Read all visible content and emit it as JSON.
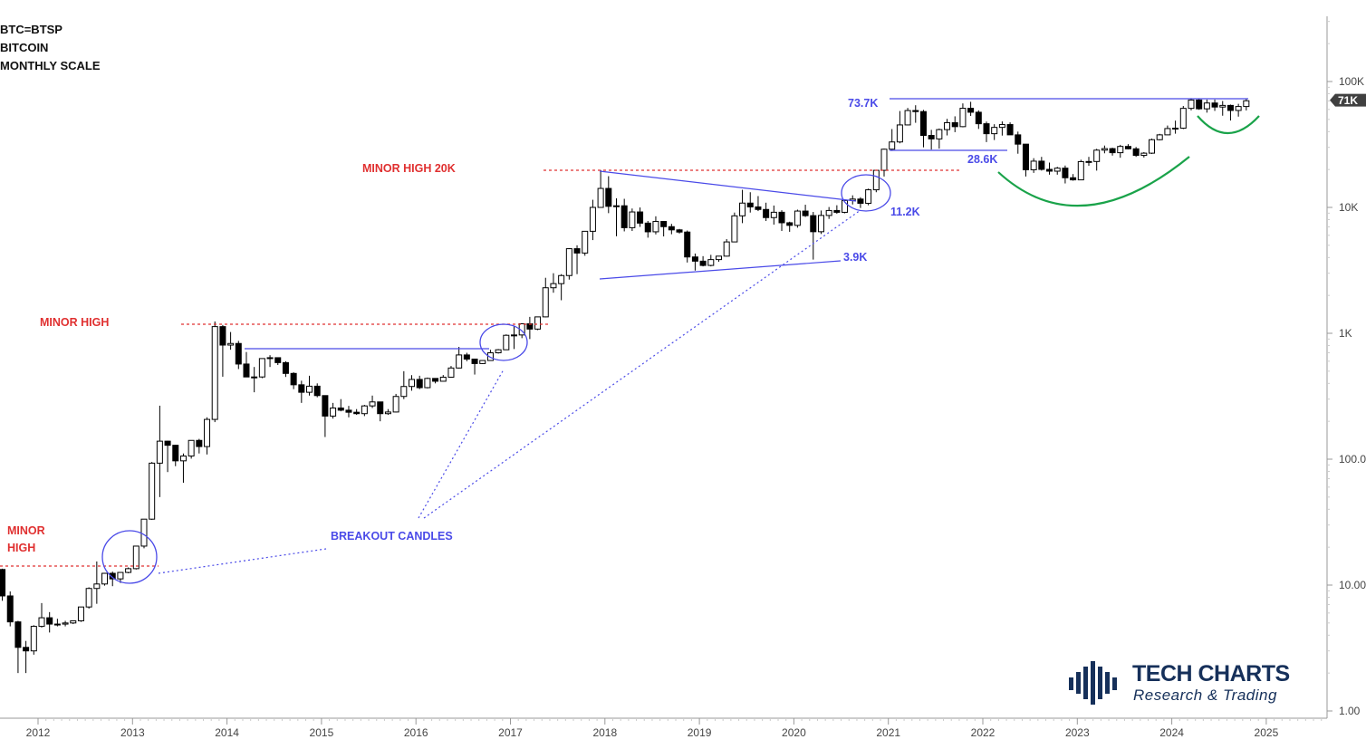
{
  "header": {
    "symbol": "BTC=BTSP",
    "name": "BITCOIN",
    "scale": "MONTHLY SCALE"
  },
  "logo": {
    "title": "TECH CHARTS",
    "subtitle": "Research & Trading"
  },
  "colors": {
    "up_body": "#ffffff",
    "down_body": "#000000",
    "trend": "#4a4ae8",
    "minor_high": "#e03030",
    "arc": "#1aa34a",
    "price_tag": "#404040"
  },
  "annotations": {
    "minor_high_2012_line1": "MINOR",
    "minor_high_2012_line2": "HIGH",
    "minor_high_2013": "MINOR HIGH",
    "minor_high_20k": "MINOR HIGH 20K",
    "breakout": "BREAKOUT CANDLES",
    "level_73_7k": "73.7K",
    "level_28_6k": "28.6K",
    "level_11_2k": "11.2K",
    "level_3_9k": "3.9K"
  },
  "chart_data": {
    "type": "candlestick",
    "title": "BTC=BTSP BITCOIN MONTHLY SCALE",
    "yscale": "log",
    "ylim": [
      1,
      400000
    ],
    "y_ticks": [
      {
        "v": 1,
        "label": "1.00"
      },
      {
        "v": 10,
        "label": "10.00"
      },
      {
        "v": 100,
        "label": "100.0"
      },
      {
        "v": 1000,
        "label": "1K"
      },
      {
        "v": 10000,
        "label": "10K"
      },
      {
        "v": 100000,
        "label": "100K"
      }
    ],
    "x_ticks": [
      "2012",
      "2013",
      "2014",
      "2015",
      "2016",
      "2017",
      "2018",
      "2019",
      "2020",
      "2021",
      "2022",
      "2023",
      "2024",
      "2025"
    ],
    "last_price_label": "71K",
    "last_price": 71000,
    "start": "2011-08",
    "ohlc": [
      [
        13.3,
        13.5,
        7.5,
        8.2
      ],
      [
        8.2,
        8.9,
        4.7,
        5.1
      ],
      [
        5.1,
        5.2,
        2.0,
        3.2
      ],
      [
        3.2,
        3.6,
        2.0,
        3.0
      ],
      [
        3.0,
        4.8,
        2.8,
        4.7
      ],
      [
        4.7,
        7.2,
        4.6,
        5.5
      ],
      [
        5.5,
        6.1,
        4.2,
        4.9
      ],
      [
        4.9,
        5.4,
        4.7,
        4.9
      ],
      [
        4.9,
        5.2,
        4.7,
        5.0
      ],
      [
        5.0,
        5.2,
        4.9,
        5.2
      ],
      [
        5.2,
        6.7,
        5.1,
        6.7
      ],
      [
        6.7,
        9.6,
        6.5,
        9.4
      ],
      [
        9.4,
        15.4,
        7.1,
        10.2
      ],
      [
        10.2,
        12.5,
        9.9,
        12.4
      ],
      [
        12.4,
        12.8,
        9.8,
        11.2
      ],
      [
        11.2,
        12.6,
        10.4,
        12.6
      ],
      [
        12.6,
        13.8,
        12.4,
        13.5
      ],
      [
        13.5,
        20.4,
        13.3,
        20.4
      ],
      [
        20.4,
        33.4,
        19.6,
        33.4
      ],
      [
        33.4,
        95,
        33,
        93
      ],
      [
        93,
        266,
        50,
        139
      ],
      [
        139,
        140,
        79,
        129
      ],
      [
        129,
        130,
        88,
        97
      ],
      [
        97,
        111,
        65,
        106
      ],
      [
        106,
        130,
        101,
        141
      ],
      [
        141,
        145,
        111,
        126
      ],
      [
        126,
        215,
        109,
        207
      ],
      [
        207,
        1242,
        197,
        1130
      ],
      [
        1130,
        1165,
        452,
        806
      ],
      [
        806,
        1024,
        740,
        830
      ],
      [
        830,
        870,
        520,
        570
      ],
      [
        570,
        710,
        450,
        450
      ],
      [
        450,
        540,
        340,
        450
      ],
      [
        450,
        630,
        440,
        630
      ],
      [
        630,
        670,
        540,
        640
      ],
      [
        640,
        640,
        560,
        585
      ],
      [
        585,
        600,
        450,
        480
      ],
      [
        480,
        490,
        360,
        390
      ],
      [
        390,
        420,
        280,
        340
      ],
      [
        340,
        460,
        320,
        380
      ],
      [
        380,
        400,
        310,
        320
      ],
      [
        320,
        320,
        150,
        220
      ],
      [
        220,
        280,
        210,
        255
      ],
      [
        255,
        300,
        240,
        245
      ],
      [
        245,
        265,
        215,
        236
      ],
      [
        236,
        250,
        225,
        230
      ],
      [
        230,
        270,
        220,
        265
      ],
      [
        265,
        320,
        255,
        285
      ],
      [
        285,
        285,
        200,
        230
      ],
      [
        230,
        250,
        225,
        237
      ],
      [
        237,
        330,
        235,
        315
      ],
      [
        315,
        500,
        300,
        378
      ],
      [
        378,
        465,
        350,
        430
      ],
      [
        430,
        460,
        360,
        370
      ],
      [
        370,
        445,
        365,
        438
      ],
      [
        438,
        440,
        400,
        416
      ],
      [
        416,
        466,
        415,
        448
      ],
      [
        448,
        550,
        445,
        530
      ],
      [
        530,
        780,
        525,
        673
      ],
      [
        673,
        700,
        600,
        624
      ],
      [
        624,
        625,
        470,
        575
      ],
      [
        575,
        610,
        570,
        608
      ],
      [
        608,
        740,
        605,
        700
      ],
      [
        700,
        750,
        690,
        740
      ],
      [
        740,
        980,
        740,
        964
      ],
      [
        964,
        1150,
        750,
        970
      ],
      [
        970,
        1200,
        915,
        1190
      ],
      [
        1190,
        1350,
        900,
        1080
      ],
      [
        1080,
        1350,
        1060,
        1350
      ],
      [
        1350,
        2760,
        1340,
        2300
      ],
      [
        2300,
        3000,
        2100,
        2480
      ],
      [
        2480,
        2950,
        1830,
        2875
      ],
      [
        2875,
        4740,
        2670,
        4700
      ],
      [
        4700,
        5000,
        2950,
        4340
      ],
      [
        4340,
        6470,
        4130,
        6460
      ],
      [
        6460,
        11500,
        5500,
        10000
      ],
      [
        10000,
        19800,
        10000,
        14150
      ],
      [
        14150,
        17700,
        9000,
        10200
      ],
      [
        10200,
        11800,
        5900,
        10300
      ],
      [
        10300,
        11700,
        6450,
        6900
      ],
      [
        6900,
        9800,
        6500,
        9200
      ],
      [
        9200,
        9990,
        7000,
        7500
      ],
      [
        7500,
        7800,
        5750,
        6400
      ],
      [
        6400,
        8500,
        6100,
        7730
      ],
      [
        7730,
        7760,
        5880,
        7030
      ],
      [
        7030,
        7400,
        6120,
        6630
      ],
      [
        6630,
        6750,
        6200,
        6370
      ],
      [
        6370,
        6550,
        3650,
        4040
      ],
      [
        4040,
        4300,
        3150,
        3740
      ],
      [
        3740,
        4100,
        3400,
        3460
      ],
      [
        3460,
        4200,
        3400,
        3850
      ],
      [
        3850,
        4120,
        3700,
        4100
      ],
      [
        4100,
        5600,
        4070,
        5320
      ],
      [
        5320,
        9100,
        5300,
        8570
      ],
      [
        8570,
        13800,
        7500,
        10820
      ],
      [
        10820,
        13200,
        9100,
        10090
      ],
      [
        10090,
        12300,
        9350,
        9630
      ],
      [
        9630,
        10900,
        7800,
        8300
      ],
      [
        8300,
        10350,
        7300,
        9150
      ],
      [
        9150,
        9500,
        6500,
        7550
      ],
      [
        7550,
        7700,
        6400,
        7200
      ],
      [
        7200,
        9600,
        6900,
        9350
      ],
      [
        9350,
        10500,
        8400,
        8600
      ],
      [
        8600,
        9200,
        3850,
        6410
      ],
      [
        6410,
        9450,
        6150,
        8630
      ],
      [
        8630,
        10070,
        8100,
        9450
      ],
      [
        9450,
        10400,
        8900,
        9140
      ],
      [
        9140,
        11450,
        8980,
        11350
      ],
      [
        11350,
        12470,
        10550,
        11650
      ],
      [
        11650,
        12050,
        9900,
        10780
      ],
      [
        10780,
        14100,
        10400,
        13800
      ],
      [
        13800,
        19900,
        13200,
        19700
      ],
      [
        19700,
        29300,
        17600,
        28990
      ],
      [
        28990,
        41900,
        28100,
        33100
      ],
      [
        33100,
        58300,
        32300,
        45200
      ],
      [
        45200,
        61700,
        44900,
        58800
      ],
      [
        58800,
        64800,
        47000,
        57700
      ],
      [
        57700,
        59500,
        30000,
        37300
      ],
      [
        37300,
        41300,
        28800,
        35000
      ],
      [
        35000,
        42300,
        29300,
        41500
      ],
      [
        41500,
        50500,
        37300,
        47100
      ],
      [
        47100,
        52900,
        39600,
        43800
      ],
      [
        43800,
        67000,
        43300,
        61300
      ],
      [
        61300,
        69000,
        53300,
        57000
      ],
      [
        57000,
        59000,
        42000,
        46200
      ],
      [
        46200,
        48000,
        33000,
        38500
      ],
      [
        38500,
        45800,
        34300,
        43200
      ],
      [
        43200,
        48200,
        37200,
        45500
      ],
      [
        45500,
        47400,
        37700,
        37700
      ],
      [
        37700,
        40000,
        26700,
        31800
      ],
      [
        31800,
        31900,
        17600,
        19900
      ],
      [
        19900,
        24600,
        18800,
        23300
      ],
      [
        23300,
        25200,
        19600,
        20050
      ],
      [
        20050,
        22700,
        18200,
        19400
      ],
      [
        19400,
        21000,
        18200,
        20500
      ],
      [
        20500,
        21500,
        15500,
        17200
      ],
      [
        17200,
        18400,
        16300,
        16550
      ],
      [
        16550,
        23900,
        16500,
        23100
      ],
      [
        23100,
        25200,
        21400,
        23150
      ],
      [
        23150,
        29200,
        19600,
        28500
      ],
      [
        28500,
        31000,
        26900,
        29300
      ],
      [
        29300,
        29800,
        25800,
        27200
      ],
      [
        27200,
        31400,
        24800,
        30500
      ],
      [
        30500,
        31800,
        28900,
        29200
      ],
      [
        29200,
        30200,
        25200,
        25900
      ],
      [
        25900,
        27500,
        24900,
        26970
      ],
      [
        26970,
        35200,
        26600,
        34500
      ],
      [
        34500,
        38400,
        34100,
        37700
      ],
      [
        37700,
        44700,
        37600,
        42300
      ],
      [
        42300,
        48900,
        38500,
        42600
      ],
      [
        42600,
        63900,
        41900,
        61200
      ],
      [
        61200,
        73700,
        59000,
        71300
      ],
      [
        71300,
        72700,
        59600,
        60700
      ],
      [
        60700,
        71900,
        56600,
        67500
      ],
      [
        67500,
        71900,
        58400,
        62700
      ],
      [
        62700,
        70000,
        53500,
        64600
      ],
      [
        64600,
        65600,
        49000,
        58900
      ],
      [
        58900,
        66500,
        52600,
        63300
      ],
      [
        63300,
        73600,
        58900,
        70300
      ]
    ]
  }
}
